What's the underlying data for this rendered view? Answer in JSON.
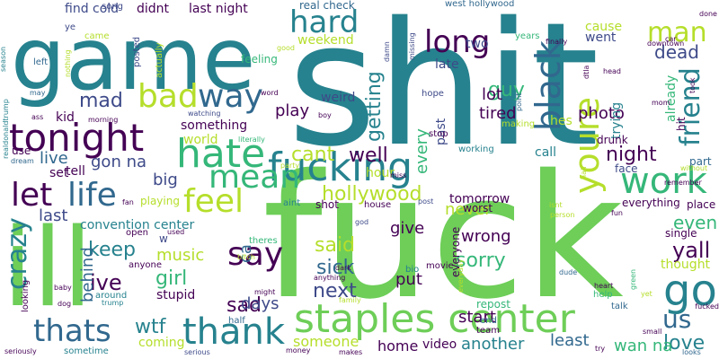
{
  "palette": {
    "purple": "#440154",
    "indigo": "#3e4a89",
    "blue": "#31688e",
    "teal": "#26828e",
    "green": "#35b779",
    "lightgreen": "#6ece58",
    "lime": "#b5de2b"
  },
  "words": [
    {
      "text": "shit",
      "color": "teal"
    },
    {
      "text": "fuck",
      "color": "lightgreen"
    },
    {
      "text": "game",
      "color": "teal"
    },
    {
      "text": "ill",
      "color": "lightgreen"
    },
    {
      "text": "staples center",
      "color": "lightgreen"
    },
    {
      "text": "fucking",
      "color": "teal"
    },
    {
      "text": "hate",
      "color": "green"
    },
    {
      "text": "tonight",
      "color": "purple"
    },
    {
      "text": "bad",
      "color": "lime"
    },
    {
      "text": "way",
      "color": "blue"
    },
    {
      "text": "life",
      "color": "blue"
    },
    {
      "text": "let",
      "color": "purple"
    },
    {
      "text": "mean",
      "color": "green"
    },
    {
      "text": "feel",
      "color": "lime"
    },
    {
      "text": "work",
      "color": "green"
    },
    {
      "text": "hard",
      "color": "teal"
    },
    {
      "text": "long",
      "color": "purple"
    },
    {
      "text": "black",
      "color": "blue"
    },
    {
      "text": "youre",
      "color": "lime"
    },
    {
      "text": "friend",
      "color": "teal"
    },
    {
      "text": "man",
      "color": "lime"
    },
    {
      "text": "dead",
      "color": "indigo"
    },
    {
      "text": "go",
      "color": "teal"
    },
    {
      "text": "us",
      "color": "blue"
    },
    {
      "text": "thank",
      "color": "teal"
    },
    {
      "text": "thats",
      "color": "blue"
    },
    {
      "text": "crazy",
      "color": "teal"
    },
    {
      "text": "say",
      "color": "purple"
    },
    {
      "text": "love",
      "color": "teal"
    },
    {
      "text": "yall",
      "color": "purple"
    },
    {
      "text": "even",
      "color": "green"
    },
    {
      "text": "sorry",
      "color": "green"
    },
    {
      "text": "hollywood",
      "color": "lime"
    },
    {
      "text": "cant",
      "color": "lime"
    },
    {
      "text": "well",
      "color": "purple"
    },
    {
      "text": "getting",
      "color": "teal"
    },
    {
      "text": "guy",
      "color": "green"
    },
    {
      "text": "photo",
      "color": "purple"
    },
    {
      "text": "night",
      "color": "purple"
    },
    {
      "text": "sick",
      "color": "blue"
    },
    {
      "text": "said",
      "color": "lime"
    },
    {
      "text": "next",
      "color": "indigo"
    },
    {
      "text": "keep",
      "color": "teal"
    },
    {
      "text": "girl",
      "color": "green"
    },
    {
      "text": "music",
      "color": "lime"
    },
    {
      "text": "sad",
      "color": "purple"
    },
    {
      "text": "days",
      "color": "indigo"
    },
    {
      "text": "wtf",
      "color": "teal"
    },
    {
      "text": "ive",
      "color": "purple"
    },
    {
      "text": "behind",
      "color": "blue"
    },
    {
      "text": "mad",
      "color": "indigo"
    },
    {
      "text": "play",
      "color": "purple"
    },
    {
      "text": "tired",
      "color": "purple"
    },
    {
      "text": "lot",
      "color": "purple"
    },
    {
      "text": "every",
      "color": "green"
    },
    {
      "text": "never",
      "color": "lime"
    },
    {
      "text": "last",
      "color": "indigo"
    },
    {
      "text": "live",
      "color": "blue"
    },
    {
      "text": "gon na",
      "color": "indigo"
    },
    {
      "text": "big",
      "color": "indigo"
    },
    {
      "text": "wrong",
      "color": "purple"
    },
    {
      "text": "put",
      "color": "purple"
    },
    {
      "text": "give",
      "color": "purple"
    },
    {
      "text": "start",
      "color": "purple"
    },
    {
      "text": "home",
      "color": "purple"
    },
    {
      "text": "another",
      "color": "teal"
    },
    {
      "text": "least",
      "color": "blue"
    },
    {
      "text": "wan na",
      "color": "green"
    },
    {
      "text": "someone",
      "color": "lime"
    },
    {
      "text": "coming",
      "color": "lime"
    },
    {
      "text": "stupid",
      "color": "purple"
    },
    {
      "text": "thought",
      "color": "lime"
    },
    {
      "text": "tomorrow",
      "color": "purple"
    },
    {
      "text": "hour",
      "color": "lime"
    },
    {
      "text": "call",
      "color": "teal"
    },
    {
      "text": "weird",
      "color": "indigo"
    },
    {
      "text": "didnt",
      "color": "purple"
    },
    {
      "text": "last night",
      "color": "purple"
    },
    {
      "text": "find",
      "color": "indigo"
    },
    {
      "text": "cold",
      "color": "indigo"
    },
    {
      "text": "weekend",
      "color": "lime"
    },
    {
      "text": "late",
      "color": "indigo"
    },
    {
      "text": "two",
      "color": "indigo"
    },
    {
      "text": "cause",
      "color": "lime"
    },
    {
      "text": "went",
      "color": "indigo"
    },
    {
      "text": "hes",
      "color": "lime"
    },
    {
      "text": "past",
      "color": "indigo"
    },
    {
      "text": "trying",
      "color": "teal"
    },
    {
      "text": "something",
      "color": "purple"
    },
    {
      "text": "world",
      "color": "lime"
    },
    {
      "text": "convention center",
      "color": "teal"
    },
    {
      "text": "kid",
      "color": "purple"
    },
    {
      "text": "tell",
      "color": "purple"
    },
    {
      "text": "set",
      "color": "purple"
    },
    {
      "text": "playing",
      "color": "lime"
    },
    {
      "text": "video",
      "color": "purple"
    },
    {
      "text": "everyone",
      "color": "purple"
    },
    {
      "text": "everything",
      "color": "purple"
    },
    {
      "text": "place",
      "color": "purple"
    },
    {
      "text": "drunk",
      "color": "purple"
    },
    {
      "text": "face",
      "color": "indigo"
    },
    {
      "text": "part",
      "color": "blue"
    },
    {
      "text": "single",
      "color": "purple"
    },
    {
      "text": "already",
      "color": "green"
    },
    {
      "text": "hit",
      "color": "purple"
    },
    {
      "text": "ca",
      "color": "blue"
    },
    {
      "text": "use",
      "color": "purple"
    },
    {
      "text": "real check",
      "color": "blue"
    },
    {
      "text": "song",
      "color": "indigo"
    },
    {
      "text": "posted",
      "color": "indigo"
    },
    {
      "text": "actually",
      "color": "lime"
    },
    {
      "text": "feeling",
      "color": "green"
    },
    {
      "text": "hope",
      "color": "indigo"
    },
    {
      "text": "stop",
      "color": "purple"
    },
    {
      "text": "working",
      "color": "teal"
    },
    {
      "text": "making",
      "color": "lime"
    },
    {
      "text": "west hollywood",
      "color": "blue"
    },
    {
      "text": "years",
      "color": "green"
    },
    {
      "text": "finally",
      "color": "purple"
    },
    {
      "text": "downtown",
      "color": "purple"
    },
    {
      "text": "done",
      "color": "purple"
    },
    {
      "text": "head",
      "color": "purple"
    },
    {
      "text": "took",
      "color": "purple"
    },
    {
      "text": "shot",
      "color": "purple"
    },
    {
      "text": "house",
      "color": "purple"
    },
    {
      "text": "worst",
      "color": "purple"
    },
    {
      "text": "aint",
      "color": "teal"
    },
    {
      "text": "open",
      "color": "purple"
    },
    {
      "text": "w",
      "color": "indigo"
    },
    {
      "text": "theres",
      "color": "green"
    },
    {
      "text": "anyone",
      "color": "purple"
    },
    {
      "text": "around",
      "color": "teal"
    },
    {
      "text": "half",
      "color": "blue"
    },
    {
      "text": "sometime",
      "color": "teal"
    },
    {
      "text": "team",
      "color": "purple"
    },
    {
      "text": "end",
      "color": "blue"
    },
    {
      "text": "talk",
      "color": "blue"
    },
    {
      "text": "help",
      "color": "green"
    },
    {
      "text": "heart",
      "color": "purple"
    },
    {
      "text": "repost",
      "color": "green"
    },
    {
      "text": "movie",
      "color": "purple"
    },
    {
      "text": "dude",
      "color": "blue"
    },
    {
      "text": "looking",
      "color": "purple"
    },
    {
      "text": "seriously",
      "color": "purple"
    },
    {
      "text": "serious",
      "color": "indigo"
    },
    {
      "text": "money",
      "color": "purple"
    },
    {
      "text": "makes",
      "color": "purple"
    },
    {
      "text": "try",
      "color": "purple"
    },
    {
      "text": "looks",
      "color": "blue"
    },
    {
      "text": "small",
      "color": "purple"
    },
    {
      "text": "fucked",
      "color": "purple"
    },
    {
      "text": "dream",
      "color": "blue"
    },
    {
      "text": "realdonaldtrump",
      "color": "teal"
    },
    {
      "text": "dtla",
      "color": "purple"
    },
    {
      "text": "missing",
      "color": "indigo"
    },
    {
      "text": "damn",
      "color": "indigo"
    },
    {
      "text": "good",
      "color": "lime"
    },
    {
      "text": "nothing",
      "color": "lime"
    },
    {
      "text": "left",
      "color": "blue"
    },
    {
      "text": "came",
      "color": "lime"
    },
    {
      "text": "ye",
      "color": "indigo"
    },
    {
      "text": "may",
      "color": "blue"
    },
    {
      "text": "season",
      "color": "teal"
    },
    {
      "text": "ass",
      "color": "purple"
    },
    {
      "text": "morning",
      "color": "purple"
    },
    {
      "text": "watching",
      "color": "indigo"
    },
    {
      "text": "literally",
      "color": "green"
    },
    {
      "text": "boy",
      "color": "purple"
    },
    {
      "text": "word",
      "color": "purple"
    },
    {
      "text": "miss",
      "color": "purple"
    },
    {
      "text": "post",
      "color": "indigo"
    },
    {
      "text": "god",
      "color": "indigo"
    },
    {
      "text": "isnt",
      "color": "lime"
    },
    {
      "text": "person",
      "color": "lime"
    },
    {
      "text": "fun",
      "color": "purple"
    },
    {
      "text": "hair",
      "color": "lime"
    },
    {
      "text": "remember",
      "color": "purple"
    },
    {
      "text": "without",
      "color": "lime"
    },
    {
      "text": "car",
      "color": "purple"
    },
    {
      "text": "mom",
      "color": "purple"
    },
    {
      "text": "party",
      "color": "lime"
    },
    {
      "text": "point",
      "color": "blue"
    },
    {
      "text": "bitch",
      "color": "lime"
    },
    {
      "text": "might",
      "color": "purple"
    },
    {
      "text": "dark",
      "color": "purple"
    },
    {
      "text": "anything",
      "color": "purple"
    },
    {
      "text": "bio",
      "color": "teal"
    },
    {
      "text": "family",
      "color": "lime"
    },
    {
      "text": "everyday",
      "color": "lime"
    },
    {
      "text": "baby",
      "color": "purple"
    },
    {
      "text": "dog",
      "color": "purple"
    },
    {
      "text": "trump",
      "color": "teal"
    },
    {
      "text": "used",
      "color": "purple"
    },
    {
      "text": "fan",
      "color": "purple"
    },
    {
      "text": "green",
      "color": "green"
    },
    {
      "text": "yet",
      "color": "lime"
    }
  ]
}
